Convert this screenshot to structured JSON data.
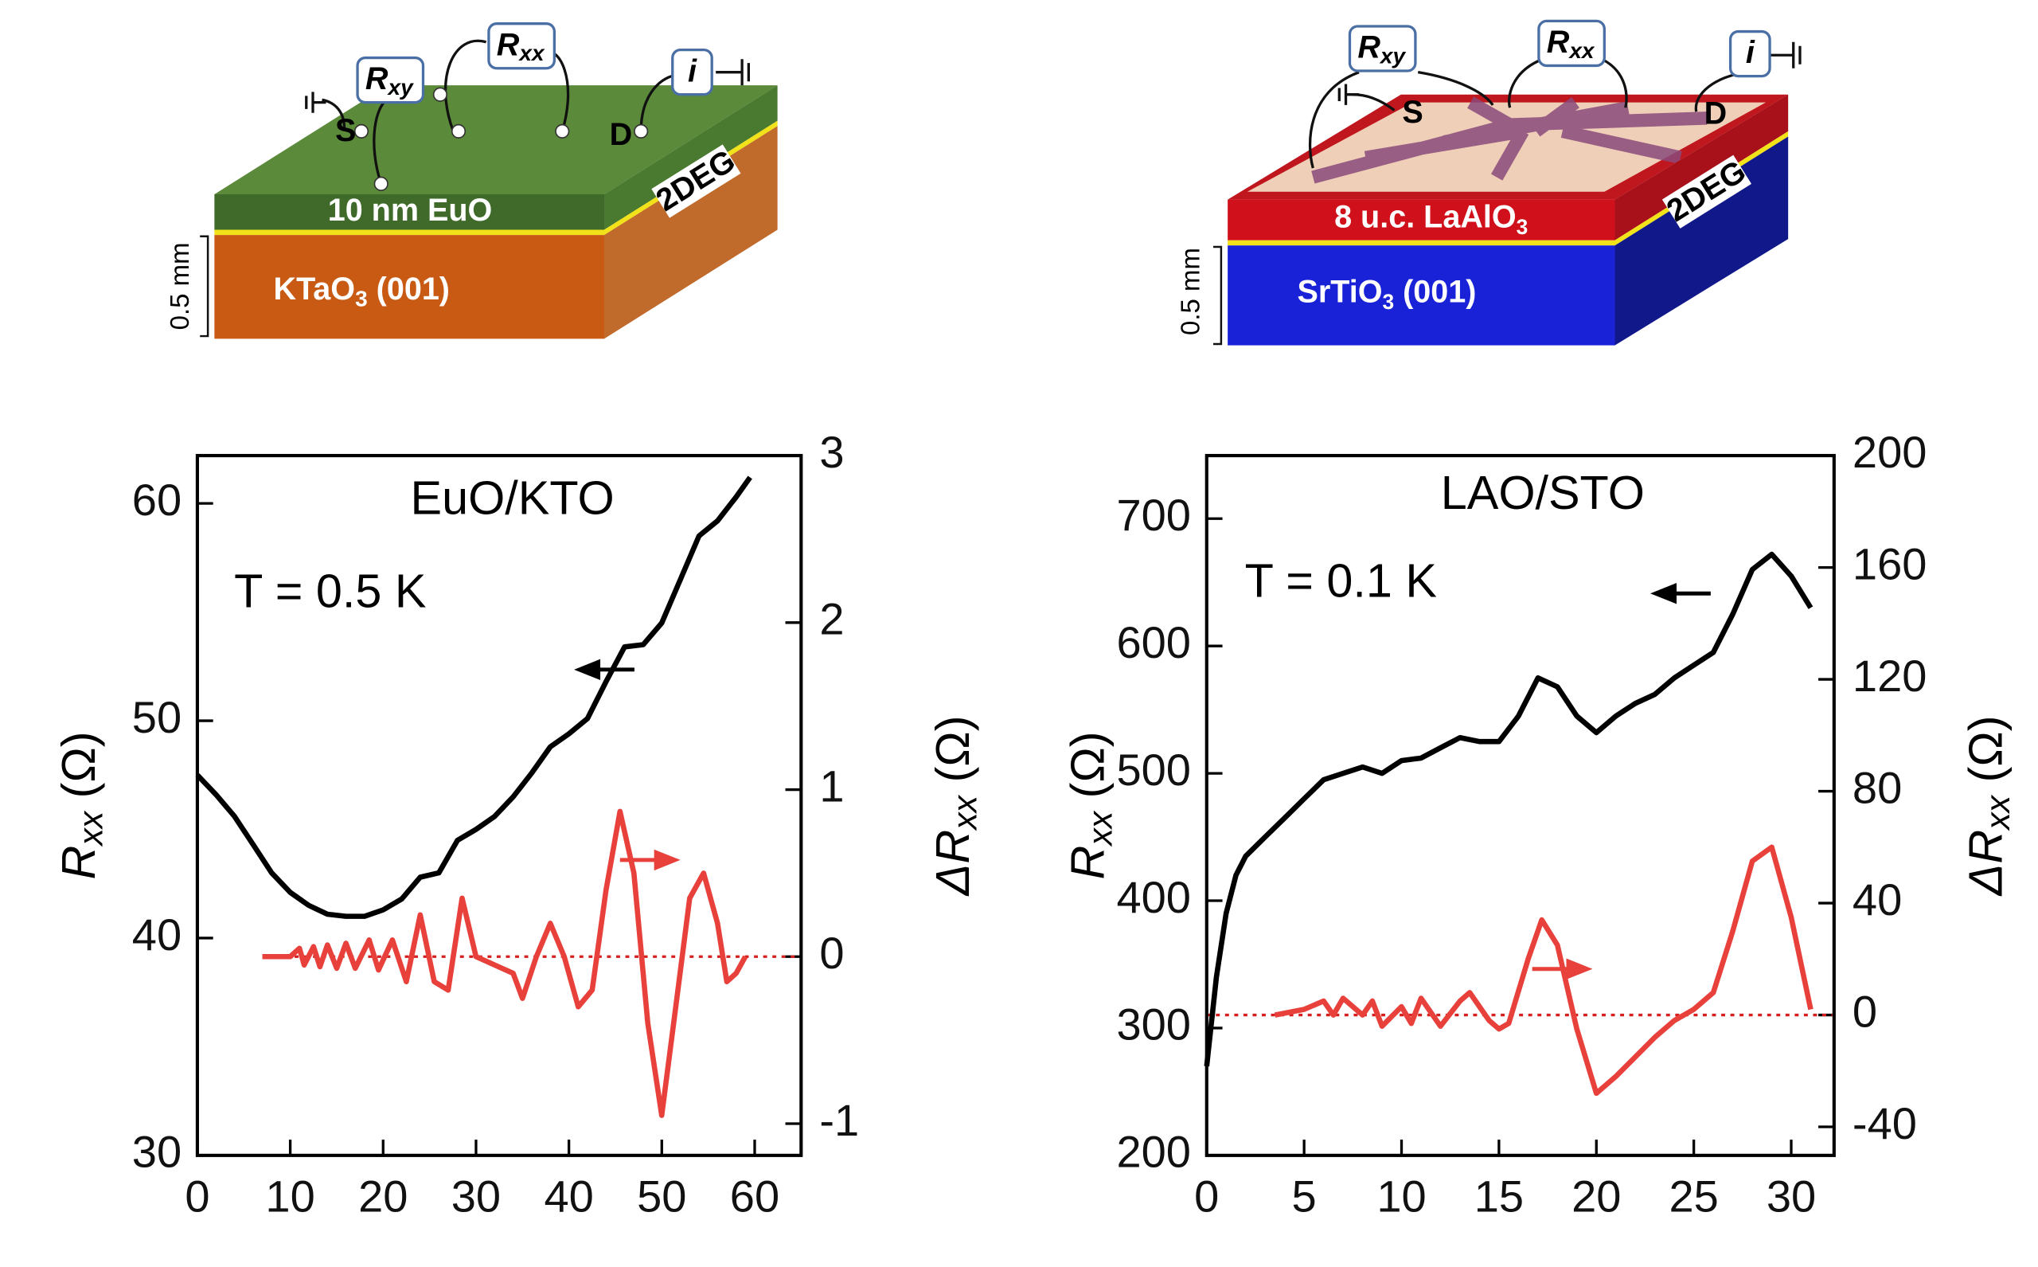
{
  "chart_data": [
    {
      "type": "line",
      "title": "EuO/KTO",
      "annotation": "T = 0.5 K",
      "y_label": {
        "main": "R",
        "sub": "xx",
        "unit": " (Ω)"
      },
      "y2_label": {
        "main": "ΔR",
        "sub": "xx",
        "unit": " (Ω)"
      },
      "xlim": [
        0,
        65
      ],
      "xticks": [
        0,
        10,
        20,
        30,
        40,
        50,
        60
      ],
      "ylim": [
        30,
        62.2
      ],
      "yticks": [
        30,
        40,
        50,
        60
      ],
      "y2lim": [
        -1.19,
        3.0
      ],
      "y2ticks": [
        -1,
        0,
        1,
        2,
        3
      ],
      "reference_line": {
        "axis": "y2",
        "value": 0,
        "color": "#d62020",
        "from": 7.5
      },
      "series": [
        {
          "color": "#000000",
          "x": [
            0,
            2,
            4,
            6,
            8,
            10,
            12,
            14,
            16,
            18,
            20,
            22,
            24,
            26,
            28,
            30,
            32,
            34,
            36,
            38,
            40,
            42,
            44,
            46,
            48,
            50,
            52,
            54,
            56,
            58,
            59.5
          ],
          "values": [
            47.5,
            46.6,
            45.6,
            44.3,
            43.0,
            42.1,
            41.5,
            41.1,
            41.0,
            41.0,
            41.3,
            41.8,
            42.8,
            43.0,
            44.5,
            45.0,
            45.6,
            46.5,
            47.6,
            48.8,
            49.4,
            50.1,
            51.8,
            53.4,
            53.5,
            54.5,
            56.5,
            58.5,
            59.2,
            60.3,
            61.2
          ]
        },
        {
          "color": "#e8413c",
          "axis": "y2",
          "x": [
            7,
            10,
            11,
            11.5,
            12.5,
            13.2,
            14,
            15,
            16,
            17,
            18.5,
            19.5,
            21,
            22.5,
            24,
            25.5,
            27,
            28.5,
            30,
            32,
            34,
            35,
            36.5,
            38,
            39.5,
            41,
            42.5,
            44,
            45.5,
            47,
            48.5,
            50,
            51.5,
            53,
            54.5,
            56,
            57,
            58,
            59
          ],
          "values": [
            0,
            0,
            0.05,
            -0.05,
            0.06,
            -0.06,
            0.07,
            -0.07,
            0.08,
            -0.07,
            0.1,
            -0.08,
            0.1,
            -0.15,
            0.25,
            -0.15,
            -0.2,
            0.35,
            0,
            -0.05,
            -0.1,
            -0.25,
            0,
            0.2,
            0,
            -0.3,
            -0.2,
            0.4,
            0.87,
            0.5,
            -0.4,
            -0.95,
            -0.3,
            0.35,
            0.5,
            0.2,
            -0.15,
            -0.1,
            0
          ]
        }
      ]
    },
    {
      "type": "line",
      "title": "LAO/STO",
      "annotation": "T = 0.1 K",
      "y_label": {
        "main": "R",
        "sub": "xx",
        "unit": " (Ω)"
      },
      "y2_label": {
        "main": "ΔR",
        "sub": "xx",
        "unit": " (Ω)"
      },
      "xlim": [
        0,
        32.2
      ],
      "xticks": [
        0,
        5,
        10,
        15,
        20,
        25,
        30
      ],
      "ylim": [
        200,
        749.5
      ],
      "yticks": [
        200,
        300,
        400,
        500,
        600,
        700
      ],
      "y2lim": [
        -50.2,
        200
      ],
      "y2ticks": [
        -40,
        0,
        40,
        80,
        120,
        160,
        200
      ],
      "reference_line": {
        "axis": "y2",
        "value": 0,
        "color": "#d62020",
        "from": 0
      },
      "series": [
        {
          "color": "#000000",
          "x": [
            0,
            0.5,
            1,
            1.5,
            2,
            3,
            4,
            5,
            6,
            7,
            8,
            9,
            10,
            11,
            12,
            13,
            14,
            15,
            16,
            17,
            18,
            19,
            20,
            21,
            22,
            23,
            24,
            25,
            26,
            27,
            28,
            29,
            30,
            31
          ],
          "values": [
            270,
            340,
            390,
            420,
            435,
            450,
            465,
            480,
            495,
            500,
            505,
            500,
            510,
            512,
            520,
            528,
            525,
            525,
            545,
            575,
            568,
            545,
            532,
            545,
            555,
            562,
            575,
            585,
            595,
            625,
            660,
            672,
            655,
            630
          ]
        },
        {
          "color": "#e8413c",
          "axis": "y2",
          "x": [
            3.5,
            5,
            6,
            6.5,
            7,
            8,
            8.5,
            9,
            10,
            10.5,
            11,
            12,
            13,
            13.5,
            14.5,
            15,
            15.5,
            16.5,
            17.2,
            18,
            19,
            20,
            21,
            22,
            23,
            24,
            25,
            26,
            27,
            28,
            29,
            30,
            31
          ],
          "values": [
            0,
            2,
            5,
            0,
            6,
            0,
            5,
            -4,
            3,
            -3,
            6,
            -4,
            5,
            8,
            -2,
            -5,
            -3,
            20,
            34,
            25,
            -5,
            -28,
            -22,
            -15,
            -8,
            -2,
            2,
            8,
            30,
            55,
            60,
            35,
            2
          ]
        }
      ]
    }
  ],
  "diagrams": [
    {
      "probes": [
        {
          "main": "R",
          "sub": "xy"
        },
        {
          "main": "R",
          "sub": "xx"
        },
        {
          "main": "i"
        }
      ],
      "source": "S",
      "drain": "D",
      "film": {
        "main": "10 nm EuO"
      },
      "interface": "2DEG",
      "substrate": {
        "main": "KTaO",
        "sub": "3",
        "rest": " (001)"
      },
      "thickness": "0.5 mm"
    },
    {
      "probes": [
        {
          "main": "R",
          "sub": "xy"
        },
        {
          "main": "R",
          "sub": "xx"
        },
        {
          "main": "i"
        }
      ],
      "source": "S",
      "drain": "D",
      "film": {
        "main": "8 u.c. LaAlO",
        "sub": "3"
      },
      "interface": "2DEG",
      "substrate": {
        "main": "SrTiO",
        "sub": "3",
        "rest": " (001)"
      },
      "thickness": "0.5 mm"
    }
  ]
}
